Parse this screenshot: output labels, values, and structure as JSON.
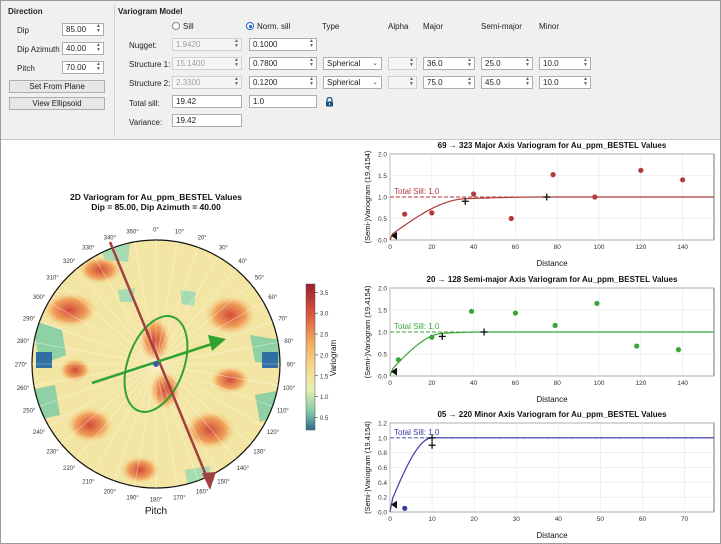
{
  "direction": {
    "title": "Direction",
    "fields": [
      {
        "label": "Dip",
        "value": "85.00"
      },
      {
        "label": "Dip Azimuth",
        "value": "40.00"
      },
      {
        "label": "Pitch",
        "value": "70.00"
      }
    ],
    "set_from_plane": "Set From Plane",
    "view_ellipsoid": "View Ellipsoid"
  },
  "model": {
    "title": "Variogram Model",
    "sill_label": "Sill",
    "norm_sill_label": "Norm. sill",
    "col_type": "Type",
    "col_alpha": "Alpha",
    "col_major": "Major",
    "col_semimajor": "Semi-major",
    "col_minor": "Minor",
    "nugget_label": "Nugget:",
    "nugget_sill": "1.9420",
    "nugget_norm": "0.1000",
    "structures": [
      {
        "label": "Structure 1:",
        "sill": "15.1400",
        "norm": "0.7800",
        "type": "Spherical",
        "major": "36.0",
        "semimajor": "25.0",
        "minor": "10.0"
      },
      {
        "label": "Structure 2:",
        "sill": "2.3300",
        "norm": "0.1200",
        "type": "Spherical",
        "major": "75.0",
        "semimajor": "45.0",
        "minor": "10.0"
      }
    ],
    "total_sill_label": "Total sill:",
    "total_sill": "19.42",
    "total_norm": "1.0",
    "variance_label": "Variance:",
    "variance": "19.42"
  },
  "polar": {
    "title_line1": "2D Variogram for Au_ppm_BESTEL Values",
    "title_line2": "Dip = 85.00, Dip Azimuth = 40.00",
    "pitch_label": "Pitch",
    "colorbar_label": "Variogram",
    "colorbar_ticks": [
      "3.5",
      "3.0",
      "2.5",
      "2.0",
      "1.5",
      "1.0",
      "0.5"
    ],
    "angle_labels": [
      "0°",
      "10°",
      "20°",
      "30°",
      "40°",
      "50°",
      "60°",
      "70°",
      "80°",
      "90°",
      "100°",
      "110°",
      "120°",
      "130°",
      "140°",
      "150°",
      "160°",
      "170°",
      "180°",
      "190°",
      "200°",
      "210°",
      "220°",
      "230°",
      "240°",
      "250°",
      "260°",
      "270°",
      "280°",
      "290°",
      "300°",
      "310°",
      "320°",
      "330°",
      "340°",
      "350°"
    ],
    "colors": {
      "major": "#a04040",
      "semimajor": "#2fa32f",
      "ellipse": "#2fa32f"
    }
  },
  "chart_data": [
    {
      "type": "scatter",
      "title": "69 → 323 Major Axis Variogram for Au_ppm_BESTEL Values",
      "xlabel": "Distance",
      "ylabel": "(Semi-)Variogram (19.4154)",
      "xlim": [
        0,
        155
      ],
      "ylim": [
        0,
        2.0
      ],
      "xticks": [
        0,
        20,
        40,
        60,
        80,
        100,
        120,
        140
      ],
      "yticks": [
        0.0,
        0.5,
        1.0,
        1.5,
        2.0
      ],
      "color": "#b23a3a",
      "sill_label": "Total Sill: 1.0",
      "points": [
        [
          7,
          0.6
        ],
        [
          20,
          0.63
        ],
        [
          40,
          1.07
        ],
        [
          58,
          0.5
        ],
        [
          78,
          1.52
        ],
        [
          98,
          1.0
        ],
        [
          120,
          1.62
        ],
        [
          140,
          1.4
        ]
      ],
      "model": {
        "nugget": 0.1,
        "structures": [
          {
            "sill": 0.78,
            "range": 36
          },
          {
            "sill": 0.12,
            "range": 75
          }
        ]
      },
      "crosses": [
        [
          36,
          0.9
        ],
        [
          75,
          1.0
        ]
      ]
    },
    {
      "type": "scatter",
      "title": "20 → 128 Semi-major Axis Variogram for Au_ppm_BESTEL Values",
      "xlabel": "Distance",
      "ylabel": "(Semi-)Variogram (19.4154)",
      "xlim": [
        0,
        155
      ],
      "ylim": [
        0,
        2.0
      ],
      "xticks": [
        0,
        20,
        40,
        60,
        80,
        100,
        120,
        140
      ],
      "yticks": [
        0.0,
        0.5,
        1.0,
        1.5,
        2.0
      ],
      "color": "#3aa63a",
      "sill_label": "Total Sill: 1.0",
      "points": [
        [
          4,
          0.37
        ],
        [
          20,
          0.88
        ],
        [
          39,
          1.47
        ],
        [
          60,
          1.43
        ],
        [
          79,
          1.15
        ],
        [
          99,
          1.65
        ],
        [
          118,
          0.68
        ],
        [
          138,
          0.6
        ]
      ],
      "model": {
        "nugget": 0.1,
        "structures": [
          {
            "sill": 0.78,
            "range": 25
          },
          {
            "sill": 0.12,
            "range": 45
          }
        ]
      },
      "crosses": [
        [
          25,
          0.9
        ],
        [
          45,
          1.0
        ]
      ]
    },
    {
      "type": "scatter",
      "title": "05 → 220 Minor Axis Variogram for Au_ppm_BESTEL Values",
      "xlabel": "Distance",
      "ylabel": "(Semi-)Variogram (19.4154)",
      "xlim": [
        0,
        77
      ],
      "ylim": [
        0,
        1.2
      ],
      "xticks": [
        0,
        10,
        20,
        30,
        40,
        50,
        60,
        70
      ],
      "yticks": [
        0.0,
        0.2,
        0.4,
        0.6,
        0.8,
        1.0,
        1.2
      ],
      "color": "#3a3aa6",
      "sill_label": "Total Sill: 1.0",
      "points": [
        [
          3.5,
          0.05
        ]
      ],
      "model": {
        "nugget": 0.1,
        "structures": [
          {
            "sill": 0.78,
            "range": 10
          },
          {
            "sill": 0.12,
            "range": 10
          }
        ]
      },
      "crosses": [
        [
          10,
          0.9
        ],
        [
          10,
          1.0
        ]
      ]
    }
  ]
}
